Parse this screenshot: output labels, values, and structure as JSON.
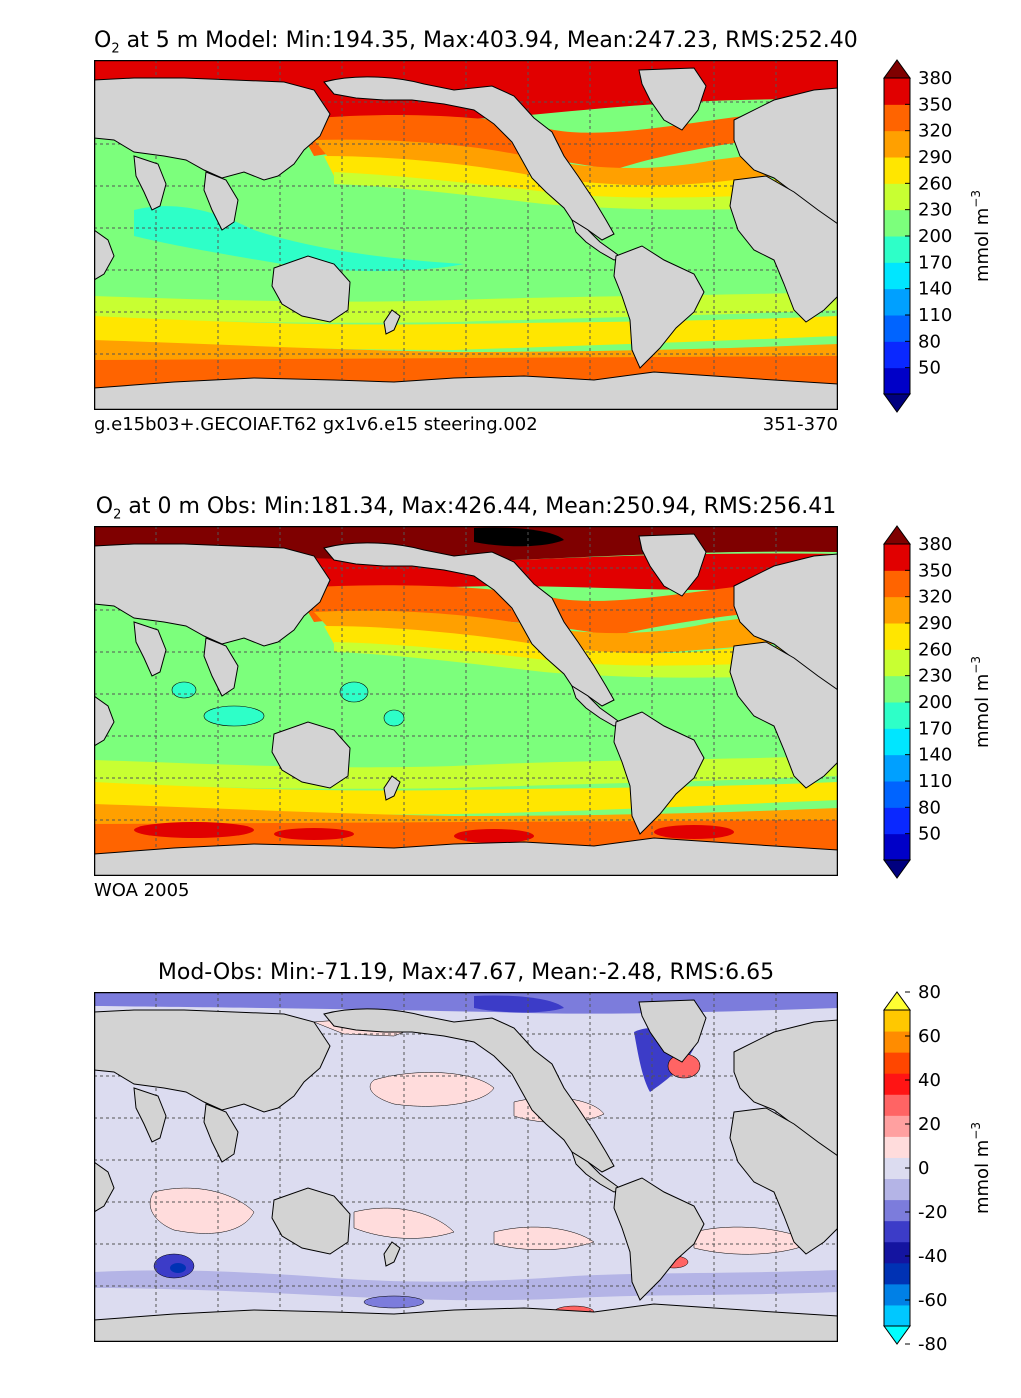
{
  "panels": [
    {
      "id": "model",
      "title_var": "O",
      "title_sub": "2",
      "title_rest": " at 5 m Model: Min:194.35, Max:403.94, Mean:247.23, RMS:252.40",
      "note_left": "g.e15b03+.GECOIAF.T62 gx1v6.e15 steering.002",
      "note_right": "351-370",
      "colorbar": {
        "unit": "mmol m",
        "unit_sup": "−3",
        "ticks": [
          "50",
          "80",
          "110",
          "140",
          "170",
          "200",
          "230",
          "260",
          "290",
          "320",
          "350",
          "380"
        ],
        "colors": [
          "#00007f",
          "#0000c8",
          "#0a28ff",
          "#0064ff",
          "#00a0ff",
          "#00e6ff",
          "#2effc8",
          "#7cff7c",
          "#c8ff32",
          "#ffe600",
          "#ffa000",
          "#ff6400",
          "#e10000",
          "#7f0000"
        ]
      }
    },
    {
      "id": "obs",
      "title_var": "O",
      "title_sub": "2",
      "title_rest": " at 0 m Obs: Min:181.34, Max:426.44, Mean:250.94, RMS:256.41",
      "note_left": "WOA 2005",
      "note_right": "",
      "colorbar": {
        "unit": "mmol m",
        "unit_sup": "−3",
        "ticks": [
          "50",
          "80",
          "110",
          "140",
          "170",
          "200",
          "230",
          "260",
          "290",
          "320",
          "350",
          "380"
        ],
        "colors": [
          "#00007f",
          "#0000c8",
          "#0a28ff",
          "#0064ff",
          "#00a0ff",
          "#00e6ff",
          "#2effc8",
          "#7cff7c",
          "#c8ff32",
          "#ffe600",
          "#ffa000",
          "#ff6400",
          "#e10000",
          "#7f0000"
        ]
      }
    },
    {
      "id": "diff",
      "title_var": "",
      "title_sub": "",
      "title_rest": "Mod-Obs: Min:-71.19, Max:47.67, Mean:-2.48, RMS:6.65",
      "note_left": "",
      "note_right": "",
      "colorbar": {
        "unit": "mmol m",
        "unit_sup": "−3",
        "ticks": [
          "-80",
          "-60",
          "-40",
          "-20",
          "0",
          "20",
          "40",
          "60",
          "80"
        ],
        "colors": [
          "#00ffff",
          "#00c8ff",
          "#0080e6",
          "#0032b4",
          "#1414a0",
          "#3c3cc8",
          "#7c7cdc",
          "#b4b4e6",
          "#dcdcf0",
          "#ffdcdc",
          "#ffa0a0",
          "#ff6464",
          "#ff1414",
          "#ff4600",
          "#ff8c00",
          "#ffc800",
          "#ffff32"
        ]
      }
    }
  ],
  "chart_data": [
    {
      "type": "heatmap",
      "title": "O2 at 5 m Model: Min:194.35, Max:403.94, Mean:247.23, RMS:252.40",
      "variable": "O2",
      "depth_m": 5,
      "stats": {
        "min": 194.35,
        "max": 403.94,
        "mean": 247.23,
        "rms": 252.4
      },
      "x_range_lon": [
        0,
        360
      ],
      "y_range_lat": [
        -78,
        90
      ],
      "grid": true,
      "colorbar_levels": [
        50,
        80,
        110,
        140,
        170,
        200,
        230,
        260,
        290,
        320,
        350,
        380
      ],
      "unit": "mmol m-3",
      "legend_position": "right"
    },
    {
      "type": "heatmap",
      "title": "O2 at 0 m Obs: Min:181.34, Max:426.44, Mean:250.94, RMS:256.41",
      "variable": "O2",
      "depth_m": 0,
      "stats": {
        "min": 181.34,
        "max": 426.44,
        "mean": 250.94,
        "rms": 256.41
      },
      "x_range_lon": [
        0,
        360
      ],
      "y_range_lat": [
        -78,
        90
      ],
      "grid": true,
      "colorbar_levels": [
        50,
        80,
        110,
        140,
        170,
        200,
        230,
        260,
        290,
        320,
        350,
        380
      ],
      "unit": "mmol m-3",
      "legend_position": "right"
    },
    {
      "type": "heatmap",
      "title": "Mod-Obs: Min:-71.19, Max:47.67, Mean:-2.48, RMS:6.65",
      "stats": {
        "min": -71.19,
        "max": 47.67,
        "mean": -2.48,
        "rms": 6.65
      },
      "x_range_lon": [
        0,
        360
      ],
      "y_range_lat": [
        -78,
        90
      ],
      "grid": true,
      "colorbar_levels": [
        -80,
        -60,
        -40,
        -20,
        0,
        20,
        40,
        60,
        80
      ],
      "unit": "mmol m-3",
      "legend_position": "right"
    }
  ]
}
